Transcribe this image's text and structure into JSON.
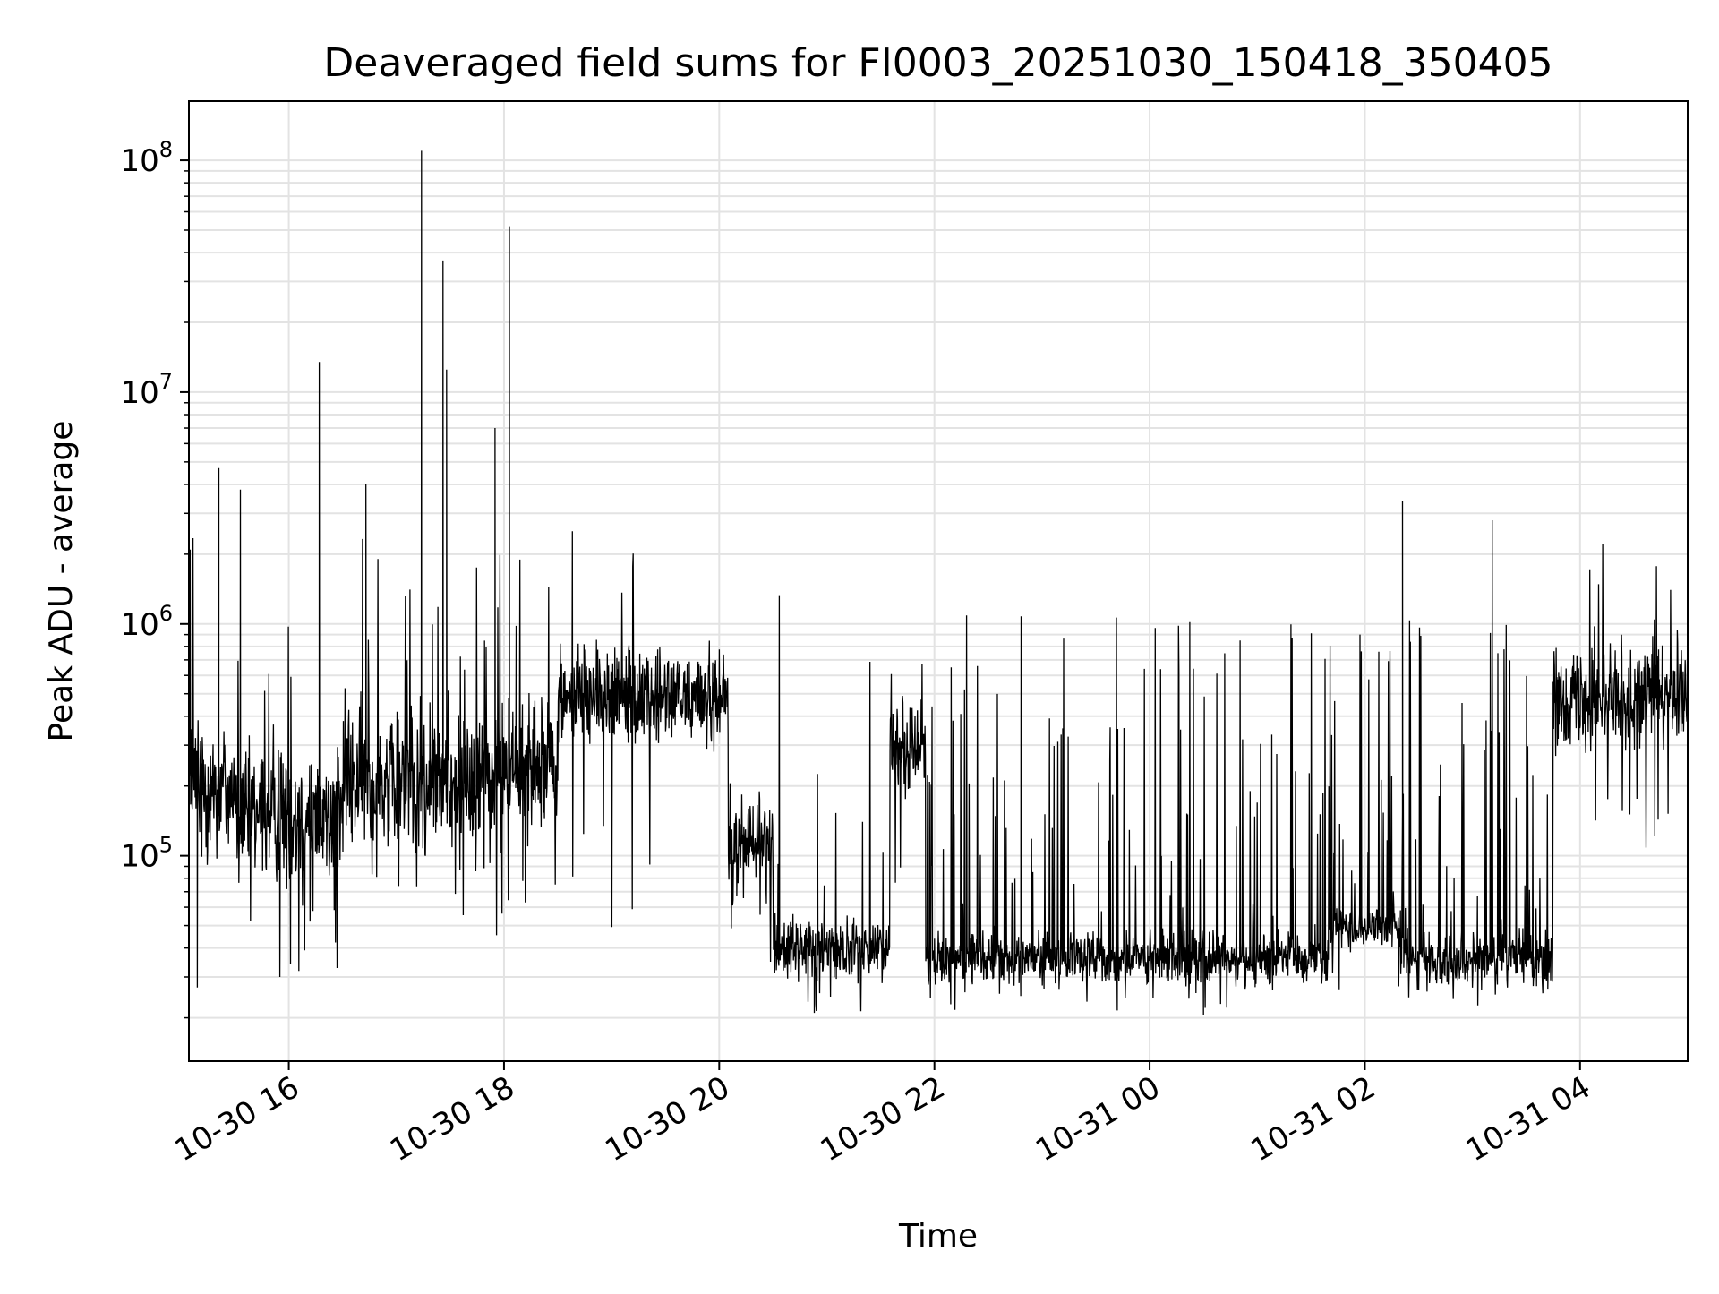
{
  "chart_data": {
    "type": "line",
    "title": "Deaveraged field sums for FI0003_20251030_150418_350405",
    "xlabel": "Time",
    "ylabel": "Peak ADU - average",
    "x_axis": {
      "kind": "datetime",
      "range": [
        "2025-10-30T15:04:18",
        "2025-10-31T05:00:00"
      ],
      "ticks": [
        {
          "value": "2025-10-30T16:00:00",
          "label": "10-30 16"
        },
        {
          "value": "2025-10-30T18:00:00",
          "label": "10-30 18"
        },
        {
          "value": "2025-10-30T20:00:00",
          "label": "10-30 20"
        },
        {
          "value": "2025-10-30T22:00:00",
          "label": "10-30 22"
        },
        {
          "value": "2025-10-31T00:00:00",
          "label": "10-31 00"
        },
        {
          "value": "2025-10-31T02:00:00",
          "label": "10-31 02"
        },
        {
          "value": "2025-10-31T04:00:00",
          "label": "10-31 04"
        }
      ]
    },
    "y_axis": {
      "scale": "log",
      "range": [
        13000,
        180000000
      ],
      "ticks": [
        {
          "value": 100000,
          "base": "10",
          "exp": "5"
        },
        {
          "value": 1000000,
          "base": "10",
          "exp": "6"
        },
        {
          "value": 10000000,
          "base": "10",
          "exp": "7"
        },
        {
          "value": 100000000,
          "base": "10",
          "exp": "8"
        }
      ]
    },
    "grid": true,
    "grid_minor": true,
    "line_color": "#000000",
    "segments": [
      {
        "t0": "2025-10-30T15:04:18",
        "t1": "2025-10-30T15:30:00",
        "level": 200000,
        "spread": 0.45,
        "spike_rate": 0.05,
        "spike_max": 4700000,
        "dip_rate": 0.03,
        "dip_min": 27000
      },
      {
        "t0": "2025-10-30T15:30:00",
        "t1": "2025-10-30T16:30:00",
        "level": 150000,
        "spread": 0.4,
        "spike_rate": 0.04,
        "spike_max": 1700000,
        "dip_rate": 0.03,
        "dip_min": 30000
      },
      {
        "t0": "2025-10-30T16:30:00",
        "t1": "2025-10-30T18:00:00",
        "level": 210000,
        "spread": 0.45,
        "spike_rate": 0.05,
        "spike_max": 2500000,
        "dip_rate": 0.03,
        "dip_min": 40000
      },
      {
        "t0": "2025-10-30T18:00:00",
        "t1": "2025-10-30T18:30:00",
        "level": 250000,
        "spread": 0.4,
        "spike_rate": 0.04,
        "spike_max": 2500000,
        "dip_rate": 0.02,
        "dip_min": 31000
      },
      {
        "t0": "2025-10-30T18:30:00",
        "t1": "2025-10-30T20:05:00",
        "level": 480000,
        "spread": 0.3,
        "spike_rate": 0.03,
        "spike_max": 2700000,
        "dip_rate": 0.02,
        "dip_min": 40000
      },
      {
        "t0": "2025-10-30T20:05:00",
        "t1": "2025-10-30T20:30:00",
        "level": 110000,
        "spread": 0.35,
        "spike_rate": 0.03,
        "spike_max": 1600000,
        "dip_rate": 0.02,
        "dip_min": 31000
      },
      {
        "t0": "2025-10-30T20:30:00",
        "t1": "2025-10-30T21:35:00",
        "level": 40000,
        "spread": 0.18,
        "spike_rate": 0.03,
        "spike_max": 1800000,
        "dip_rate": 0.03,
        "dip_min": 21000
      },
      {
        "t0": "2025-10-30T21:35:00",
        "t1": "2025-10-30T21:55:00",
        "level": 300000,
        "spread": 0.3,
        "spike_rate": 0.05,
        "spike_max": 1500000,
        "dip_rate": 0.02,
        "dip_min": 60000
      },
      {
        "t0": "2025-10-30T21:55:00",
        "t1": "2025-10-31T01:40:00",
        "level": 36000,
        "spread": 0.16,
        "spike_rate": 0.1,
        "spike_max": 1100000,
        "dip_rate": 0.03,
        "dip_min": 21000
      },
      {
        "t0": "2025-10-31T01:40:00",
        "t1": "2025-10-31T02:20:00",
        "level": 48000,
        "spread": 0.12,
        "spike_rate": 0.12,
        "spike_max": 1100000,
        "dip_rate": 0.02,
        "dip_min": 25000
      },
      {
        "t0": "2025-10-31T02:20:00",
        "t1": "2025-10-31T03:45:00",
        "level": 36000,
        "spread": 0.16,
        "spike_rate": 0.1,
        "spike_max": 1100000,
        "dip_rate": 0.03,
        "dip_min": 22000
      },
      {
        "t0": "2025-10-31T03:45:00",
        "t1": "2025-10-31T05:00:00",
        "level": 480000,
        "spread": 0.3,
        "spike_rate": 0.04,
        "spike_max": 2300000,
        "dip_rate": 0.02,
        "dip_min": 90000
      }
    ],
    "peaks": [
      {
        "t": "2025-10-30T15:09:00",
        "value": 27000
      },
      {
        "t": "2025-10-30T15:21:00",
        "value": 4700000
      },
      {
        "t": "2025-10-30T15:33:00",
        "value": 3800000
      },
      {
        "t": "2025-10-30T15:55:00",
        "value": 30000
      },
      {
        "t": "2025-10-30T16:17:00",
        "value": 13500000
      },
      {
        "t": "2025-10-30T16:43:00",
        "value": 4000000
      },
      {
        "t": "2025-10-30T17:14:00",
        "value": 110000000
      },
      {
        "t": "2025-10-30T17:26:00",
        "value": 37000000
      },
      {
        "t": "2025-10-30T17:28:00",
        "value": 12500000
      },
      {
        "t": "2025-10-30T17:55:00",
        "value": 7000000
      },
      {
        "t": "2025-10-30T18:03:00",
        "value": 52000000
      },
      {
        "t": "2025-10-30T20:53:00",
        "value": 21000
      },
      {
        "t": "2025-10-31T00:30:00",
        "value": 20500
      },
      {
        "t": "2025-10-31T02:21:00",
        "value": 3400000
      },
      {
        "t": "2025-10-31T03:11:00",
        "value": 2800000
      }
    ]
  }
}
